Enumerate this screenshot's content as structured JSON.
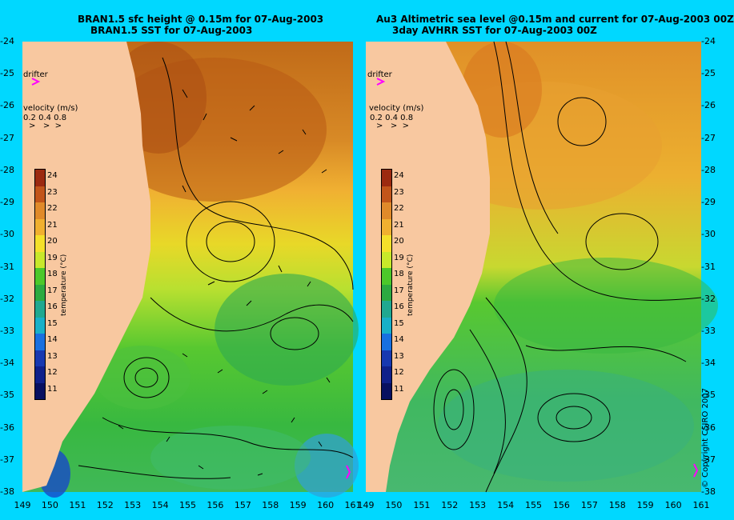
{
  "left_panel": {
    "title_line1": "BRAN1.5 sfc height @ 0.15m for 07-Aug-2003",
    "title_line2": "BRAN1.5 SST for 07-Aug-2003",
    "drifter_label": "drifter",
    "velocity_title": "velocity (m/s)",
    "velocity_values": "0.2 0.4 0.8"
  },
  "right_panel": {
    "title_line1": "Au3 Altimetric sea level  @0.15m and current for 07-Aug-2003 00Z",
    "title_line2": "3day AVHRR SST for 07-Aug-2003 00Z",
    "drifter_label": "drifter",
    "velocity_title": "velocity (m/s)",
    "velocity_values": "0.2 0.4 0.8"
  },
  "colorbar": {
    "title": "temperature (°C)",
    "ticks": [
      "24",
      "23",
      "22",
      "21",
      "20",
      "19",
      "18",
      "17",
      "16",
      "15",
      "14",
      "13",
      "12",
      "11"
    ],
    "colors": [
      "#9c2a10",
      "#c2551a",
      "#e08a2a",
      "#f0b030",
      "#f4e02a",
      "#c8e82a",
      "#4cc82a",
      "#2caa40",
      "#20a890",
      "#18b0c8",
      "#1870e0",
      "#1838b0",
      "#10208a",
      "#081060"
    ]
  },
  "y_axis": [
    "-24",
    "-25",
    "-26",
    "-27",
    "-28",
    "-29",
    "-30",
    "-31",
    "-32",
    "-33",
    "-34",
    "-35",
    "-36",
    "-37",
    "-38"
  ],
  "x_axis_left": [
    "149",
    "150",
    "151",
    "152",
    "153",
    "154",
    "155",
    "156",
    "157",
    "158",
    "159",
    "160",
    "161"
  ],
  "x_axis_right": [
    "149",
    "150",
    "151",
    "152",
    "153",
    "154",
    "155",
    "156",
    "157",
    "158",
    "159",
    "160",
    "161"
  ],
  "copyright": "© Copyright CSIRO 2007",
  "colors": {
    "background": "#00d8ff",
    "land": "#f8c8a0",
    "drifter": "#ff00ff"
  }
}
